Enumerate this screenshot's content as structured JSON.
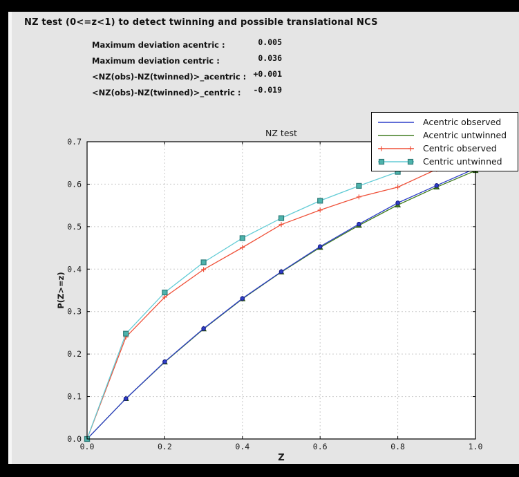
{
  "window": {
    "title": "NZ test (0<=z<1) to detect twinning and possible translational NCS"
  },
  "stats": {
    "rows": [
      {
        "label": "Maximum deviation acentric :",
        "value": "0.005"
      },
      {
        "label": "Maximum deviation centric :",
        "value": "0.036"
      },
      {
        "label": "<NZ(obs)-NZ(twinned)>_acentric :",
        "value": "+0.001"
      },
      {
        "label": "<NZ(obs)-NZ(twinned)>_centric :",
        "value": "-0.019"
      }
    ]
  },
  "chart_data": {
    "type": "line",
    "title": "NZ test",
    "xlabel": "Z",
    "ylabel": "P(Z>=z)",
    "xlim": [
      0.0,
      1.0
    ],
    "ylim": [
      0.0,
      0.7
    ],
    "xticks": [
      "0.0",
      "0.2",
      "0.4",
      "0.6",
      "0.8",
      "1.0"
    ],
    "yticks": [
      "0.0",
      "0.1",
      "0.2",
      "0.3",
      "0.4",
      "0.5",
      "0.6",
      "0.7"
    ],
    "grid": {
      "x_values": [
        0.2,
        0.4,
        0.6,
        0.8
      ],
      "y_values": [
        0.1,
        0.2,
        0.3,
        0.4,
        0.5,
        0.6
      ],
      "style": "dashed",
      "color": "#c9c9c9"
    },
    "legend_position": "upper-right",
    "plot_bg": "#ffffff",
    "figure_bg": "#e5e5e5",
    "x": [
      0.0,
      0.1,
      0.2,
      0.3,
      0.4,
      0.5,
      0.6,
      0.7,
      0.8,
      0.9,
      1.0
    ],
    "series": [
      {
        "label": "Acentric observed",
        "color": "#2d3ec8",
        "marker": "circle",
        "marker_fill": "#2d3ec8",
        "marker_edge": "#191980",
        "values": [
          0.0,
          0.095,
          0.182,
          0.26,
          0.331,
          0.394,
          0.453,
          0.506,
          0.556,
          0.597,
          0.637
        ]
      },
      {
        "label": "Acentric untwinned",
        "color": "#417d20",
        "marker": "triangle",
        "marker_fill": "#417d20",
        "marker_edge": "#234c12",
        "values": [
          0.0,
          0.095,
          0.181,
          0.259,
          0.33,
          0.393,
          0.451,
          0.503,
          0.551,
          0.593,
          0.632
        ]
      },
      {
        "label": "Centric observed",
        "color": "#ef5038",
        "marker": "plus",
        "marker_fill": "#ef5038",
        "marker_edge": "#ef5038",
        "values": [
          0.0,
          0.24,
          0.334,
          0.399,
          0.451,
          0.505,
          0.539,
          0.57,
          0.593,
          0.635,
          0.648
        ]
      },
      {
        "label": "Centric untwinned",
        "color": "#63ccd6",
        "marker": "square",
        "marker_fill": "#4db3ac",
        "marker_edge": "#2d7b78",
        "values": [
          0.0,
          0.248,
          0.345,
          0.416,
          0.473,
          0.52,
          0.561,
          0.596,
          0.629,
          0.657,
          0.683
        ]
      }
    ]
  }
}
